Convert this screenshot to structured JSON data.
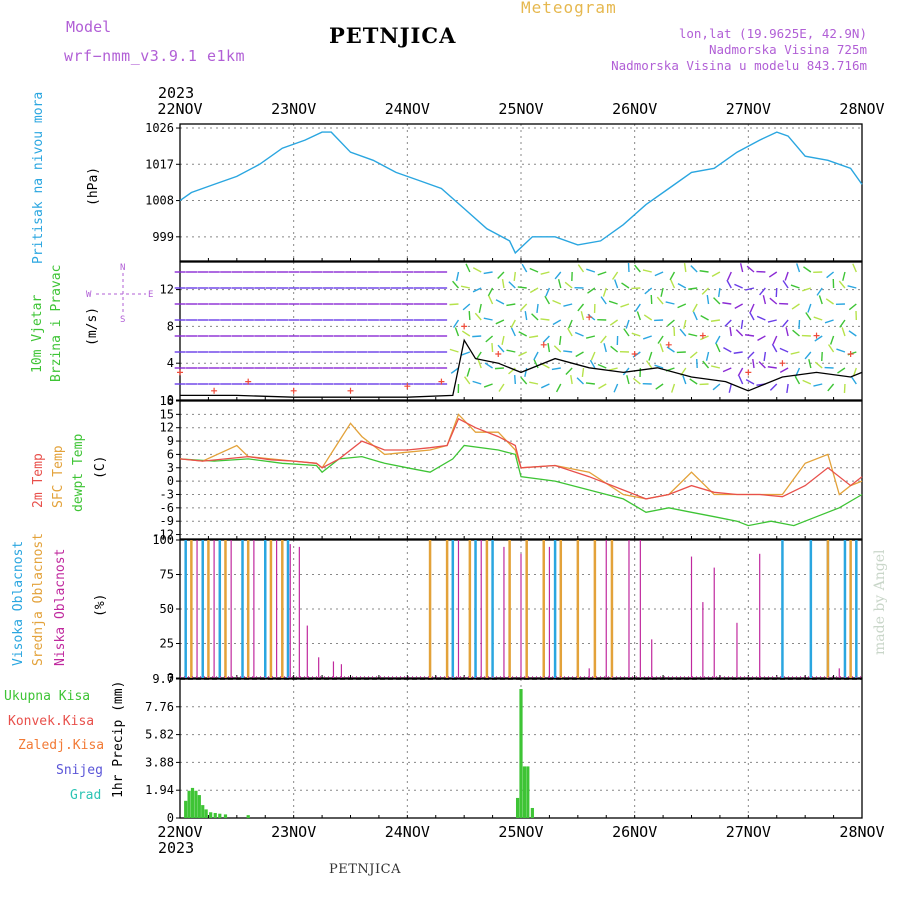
{
  "header": {
    "model_label": "Model",
    "model_value": "wrf−nmm_v3.9.1  e1km",
    "station": "PETNJICA",
    "title": "Meteogram",
    "coords": "lon,lat (19.9625E, 42.9N)",
    "altitude": "Nadmorska Visina 725m",
    "model_altitude": "Nadmorska Visina u modelu 843.716m"
  },
  "footer": {
    "station": "PETNJICA",
    "watermark": "made by Angel"
  },
  "time_axis": {
    "year": "2023",
    "ticks": [
      "22NOV",
      "23NOV",
      "24NOV",
      "25NOV",
      "26NOV",
      "27NOV",
      "28NOV"
    ]
  },
  "panels": {
    "pressure": {
      "title": "Pritisak na nivou mora",
      "unit": "(hPa)"
    },
    "wind": {
      "title_1": "10m Vjetar",
      "title_2": "Brzina i Pravac",
      "unit": "(m/s)",
      "compass": [
        "N",
        "S",
        "W",
        "E"
      ]
    },
    "temp": {
      "label_2m": "2m Temp",
      "label_sfc": "SFC Temp",
      "label_dew": "dewpt Temp",
      "unit": "(C)"
    },
    "cloud": {
      "label_high": "Visoka Oblacnost",
      "label_mid": "Srednja Oblacnost",
      "label_low": "Niska Oblacnost",
      "unit": "(%)"
    },
    "precip": {
      "legend": [
        "Ukupna Kisa",
        "Konvek.Kisa",
        "Zaledj.Kisa",
        "Snijeg",
        "Grad"
      ],
      "unit": "1hr Precip (mm)"
    }
  },
  "colors": {
    "pressure": "#2aa6e0",
    "temp2m": "#e8504b",
    "sfc": "#e3a23a",
    "dew": "#3ec435",
    "wind_line": "#000000",
    "gust": "#ef4b3a",
    "precip": "#3ec435",
    "cloud_high": "#2aa6e0",
    "cloud_mid": "#e3a23a",
    "cloud_low": "#c0299e",
    "label_purple": "#b15fd6",
    "label_green": "#3ec435",
    "snow": "#5a55d8",
    "hail": "#2cc4b4",
    "freez": "#f27a35",
    "conv": "#e8504b"
  },
  "chart_data": [
    {
      "type": "line",
      "panel": "pressure",
      "x_unit": "days since 22NOV 2023 00Z",
      "ylim": [
        993,
        1027
      ],
      "yticks": [
        999,
        1008,
        1017,
        1026
      ],
      "x": [
        0,
        0.1,
        0.3,
        0.5,
        0.7,
        0.9,
        1.1,
        1.25,
        1.33,
        1.5,
        1.7,
        1.9,
        2.1,
        2.3,
        2.5,
        2.7,
        2.9,
        2.95,
        3.1,
        3.3,
        3.5,
        3.7,
        3.9,
        4.1,
        4.3,
        4.5,
        4.7,
        4.9,
        5.1,
        5.25,
        5.35,
        5.5,
        5.7,
        5.9,
        6.0
      ],
      "y": [
        1008,
        1010,
        1012,
        1014,
        1017,
        1021,
        1023,
        1025,
        1025,
        1020,
        1018,
        1015,
        1013,
        1011,
        1006,
        1001,
        998,
        995,
        999,
        999,
        997,
        998,
        1002,
        1007,
        1011,
        1015,
        1016,
        1020,
        1023,
        1025,
        1024,
        1019,
        1018,
        1016,
        1012
      ]
    },
    {
      "type": "line",
      "panel": "wind",
      "ylim": [
        0,
        15
      ],
      "yticks": [
        0,
        4,
        8,
        12
      ],
      "series": [
        {
          "name": "wind speed",
          "x": [
            0,
            0.5,
            1.0,
            1.5,
            2.0,
            2.4,
            2.5,
            2.6,
            2.8,
            3.0,
            3.3,
            3.6,
            3.9,
            4.2,
            4.5,
            4.8,
            5.0,
            5.3,
            5.6,
            5.9,
            6.0
          ],
          "y": [
            0.5,
            0.5,
            0.3,
            0.3,
            0.3,
            0.5,
            6.5,
            4.5,
            4.0,
            3.0,
            4.5,
            3.5,
            3.0,
            3.5,
            2.5,
            2.0,
            1.0,
            2.5,
            3.0,
            2.5,
            3.0
          ]
        },
        {
          "name": "gust",
          "x": [
            0,
            0.3,
            0.6,
            1.0,
            1.5,
            2.0,
            2.3,
            2.5,
            2.8,
            3.2,
            3.6,
            4.0,
            4.3,
            4.6,
            5.0,
            5.3,
            5.6,
            5.9
          ],
          "y": [
            3,
            1,
            2,
            1,
            1,
            1.5,
            2,
            8,
            5,
            6,
            9,
            5,
            6,
            7,
            3,
            4,
            7,
            5
          ]
        }
      ]
    },
    {
      "type": "line",
      "panel": "temp",
      "ylim": [
        -13,
        18
      ],
      "yticks": [
        -12,
        -9,
        -6,
        -3,
        0,
        3,
        6,
        9,
        12,
        15,
        18
      ],
      "series": [
        {
          "name": "2m Temp",
          "x": [
            0,
            0.2,
            0.4,
            0.6,
            0.8,
            1.0,
            1.2,
            1.25,
            1.4,
            1.6,
            1.8,
            2.0,
            2.2,
            2.35,
            2.45,
            2.6,
            2.8,
            2.95,
            3.0,
            3.3,
            3.6,
            3.9,
            4.1,
            4.3,
            4.5,
            4.7,
            4.9,
            5.1,
            5.3,
            5.5,
            5.7,
            5.9,
            6.0
          ],
          "y": [
            5,
            4.5,
            5,
            5.5,
            4.8,
            4.5,
            4,
            3,
            5,
            9,
            7,
            7,
            7.5,
            8,
            14,
            12,
            10,
            8,
            3,
            3.5,
            1,
            -2,
            -4,
            -3,
            -1,
            -2.5,
            -3,
            -3,
            -3.5,
            -1,
            3,
            -1,
            1
          ]
        },
        {
          "name": "SFC Temp",
          "x": [
            0,
            0.2,
            0.5,
            0.6,
            0.8,
            1.0,
            1.2,
            1.25,
            1.4,
            1.5,
            1.6,
            1.8,
            2.0,
            2.2,
            2.35,
            2.45,
            2.6,
            2.8,
            2.95,
            3.0,
            3.3,
            3.6,
            3.9,
            4.1,
            4.3,
            4.5,
            4.7,
            4.9,
            5.1,
            5.3,
            5.5,
            5.7,
            5.8,
            5.9,
            6.0
          ],
          "y": [
            5,
            4.5,
            8,
            5.5,
            5,
            4.5,
            4,
            3,
            9,
            13,
            10,
            6,
            6.5,
            7,
            8,
            15,
            11,
            11,
            7,
            3,
            3.5,
            2,
            -3,
            -4,
            -3,
            2,
            -3,
            -3,
            -3,
            -3,
            4,
            6,
            -3,
            -1,
            0
          ]
        },
        {
          "name": "dewpt Temp",
          "x": [
            0,
            0.3,
            0.6,
            0.9,
            1.2,
            1.25,
            1.4,
            1.6,
            1.8,
            2.0,
            2.2,
            2.4,
            2.5,
            2.8,
            2.95,
            3.0,
            3.3,
            3.6,
            3.9,
            4.1,
            4.3,
            4.5,
            4.7,
            4.9,
            5.0,
            5.2,
            5.4,
            5.6,
            5.8,
            6.0
          ],
          "y": [
            5,
            4.5,
            5,
            4,
            3.5,
            2,
            5,
            5.5,
            4,
            3,
            2,
            5,
            8,
            7,
            6,
            1,
            0,
            -2,
            -4,
            -7,
            -6,
            -7,
            -8,
            -9,
            -10,
            -9,
            -10,
            -8,
            -6,
            -3
          ]
        }
      ]
    },
    {
      "type": "bar",
      "panel": "cloud",
      "ylim": [
        0,
        100
      ],
      "yticks": [
        0,
        25,
        50,
        75,
        100
      ],
      "series": [
        {
          "name": "Visoka Oblacnost",
          "x": [
            0.05,
            0.2,
            0.35,
            0.55,
            0.75,
            0.95,
            2.4,
            2.6,
            2.75,
            3.3,
            5.3,
            5.55,
            5.7,
            5.85,
            5.95
          ],
          "y": [
            100,
            100,
            100,
            100,
            100,
            100,
            100,
            100,
            100,
            100,
            100,
            100,
            100,
            100,
            100
          ]
        },
        {
          "name": "Srednja Oblacnost",
          "x": [
            0.1,
            0.25,
            0.4,
            0.6,
            0.8,
            0.9,
            2.2,
            2.35,
            2.55,
            2.7,
            2.9,
            3.05,
            3.2,
            3.35,
            3.5,
            3.65,
            3.8,
            5.7,
            5.9
          ],
          "y": [
            100,
            100,
            100,
            100,
            100,
            100,
            100,
            100,
            100,
            100,
            100,
            100,
            100,
            100,
            100,
            100,
            100,
            100,
            100
          ]
        },
        {
          "name": "Niska Oblacnost",
          "x": [
            0.15,
            0.3,
            0.45,
            0.65,
            0.85,
            0.97,
            1.05,
            1.12,
            1.22,
            1.35,
            1.42,
            2.45,
            2.65,
            2.85,
            3.0,
            3.25,
            3.6,
            3.75,
            3.95,
            4.05,
            4.15,
            4.5,
            4.6,
            4.7,
            4.9,
            5.1,
            5.8
          ],
          "y": [
            100,
            100,
            100,
            100,
            100,
            97,
            95,
            38,
            15,
            12,
            10,
            100,
            100,
            95,
            90,
            95,
            7,
            100,
            100,
            100,
            28,
            88,
            55,
            80,
            40,
            90,
            7
          ]
        }
      ]
    },
    {
      "type": "bar",
      "panel": "precip",
      "ylabel": "1hr Precip (mm)",
      "ylim": [
        0,
        9.7
      ],
      "yticks": [
        0,
        1.94,
        3.88,
        5.82,
        7.76,
        9.7
      ],
      "x": [
        0.05,
        0.08,
        0.11,
        0.14,
        0.17,
        0.2,
        0.23,
        0.27,
        0.31,
        0.35,
        0.4,
        0.6,
        2.97,
        3.0,
        3.03,
        3.06,
        3.1
      ],
      "y": [
        1.2,
        1.9,
        2.1,
        1.9,
        1.6,
        0.9,
        0.6,
        0.4,
        0.35,
        0.3,
        0.25,
        0.2,
        1.4,
        9.0,
        3.6,
        3.6,
        0.7
      ]
    }
  ]
}
